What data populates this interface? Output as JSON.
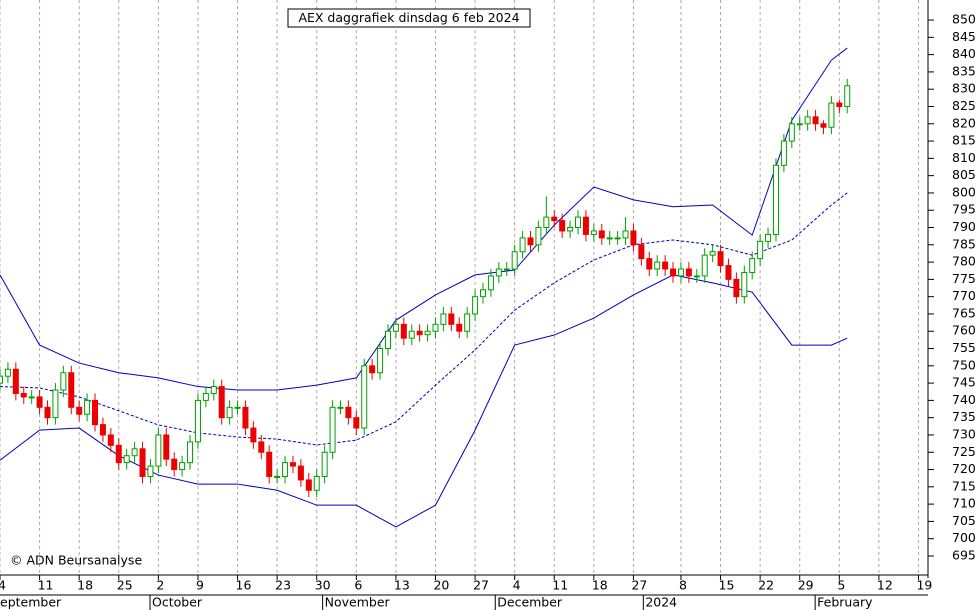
{
  "chart_data": {
    "type": "candlestick",
    "title": "AEX daggrafiek dinsdag 6 feb 2024",
    "copyright": "© ADN Beursanalyse",
    "up_color": "#00a000",
    "down_color": "#ee0000",
    "band_color": "#0000c0",
    "ylim": [
      689.5,
      855.8
    ],
    "yticks": [
      695,
      700,
      705,
      710,
      715,
      720,
      725,
      730,
      735,
      740,
      745,
      750,
      755,
      760,
      765,
      770,
      775,
      780,
      785,
      790,
      795,
      800,
      805,
      810,
      815,
      820,
      825,
      830,
      835,
      840,
      845,
      850
    ],
    "xlim": [
      0,
      117.2
    ],
    "xticks": [
      {
        "value": 0,
        "label": "4"
      },
      {
        "value": 5,
        "label": "11"
      },
      {
        "value": 10,
        "label": "18"
      },
      {
        "value": 15,
        "label": "25"
      },
      {
        "value": 20,
        "label": "2"
      },
      {
        "value": 25,
        "label": "9"
      },
      {
        "value": 30,
        "label": "16"
      },
      {
        "value": 35,
        "label": "23"
      },
      {
        "value": 40,
        "label": "30"
      },
      {
        "value": 45,
        "label": "6"
      },
      {
        "value": 50,
        "label": "13"
      },
      {
        "value": 55,
        "label": "20"
      },
      {
        "value": 60,
        "label": "27"
      },
      {
        "value": 65,
        "label": "4"
      },
      {
        "value": 70,
        "label": "11"
      },
      {
        "value": 75,
        "label": "18"
      },
      {
        "value": 80,
        "label": "27"
      },
      {
        "value": 86,
        "label": "8"
      },
      {
        "value": 91,
        "label": "15"
      },
      {
        "value": 96,
        "label": "22"
      },
      {
        "value": 101,
        "label": "29"
      },
      {
        "value": 106,
        "label": "5"
      },
      {
        "value": 111,
        "label": "12"
      },
      {
        "value": 116,
        "label": "19"
      }
    ],
    "month_labels": [
      {
        "value": -1,
        "label": "September"
      },
      {
        "value": 19.2,
        "label": "October"
      },
      {
        "value": 41,
        "label": "November"
      },
      {
        "value": 62.8,
        "label": "December"
      },
      {
        "value": 81.5,
        "label": "2024"
      },
      {
        "value": 103.2,
        "label": "February"
      }
    ],
    "x": [
      0,
      1,
      2,
      3,
      4,
      5,
      6,
      7,
      8,
      9,
      10,
      11,
      12,
      13,
      14,
      15,
      16,
      17,
      18,
      19,
      20,
      21,
      22,
      23,
      24,
      25,
      26,
      27,
      28,
      29,
      30,
      31,
      32,
      33,
      34,
      35,
      36,
      37,
      38,
      39,
      40,
      41,
      42,
      43,
      44,
      45,
      46,
      47,
      48,
      49,
      50,
      51,
      52,
      53,
      54,
      55,
      56,
      57,
      58,
      59,
      60,
      61,
      62,
      63,
      64,
      65,
      66,
      67,
      68,
      69,
      70,
      71,
      72,
      73,
      74,
      75,
      76,
      77,
      78,
      79,
      80,
      81,
      82,
      83,
      84,
      85,
      86,
      87,
      88,
      89,
      90,
      91,
      92,
      93,
      94,
      95,
      96,
      97,
      98,
      99,
      100,
      101,
      102,
      103,
      104,
      105,
      106,
      107
    ],
    "open": [
      745,
      747,
      749,
      742,
      741,
      741,
      738,
      735,
      743,
      748,
      738,
      736,
      740,
      733,
      730,
      727,
      722,
      724,
      726,
      718,
      721,
      730,
      723,
      720,
      722,
      728,
      740,
      742,
      744,
      735,
      738,
      738,
      732,
      728,
      725,
      718,
      718,
      722,
      721,
      717,
      714,
      718,
      725,
      738,
      738,
      735,
      732,
      750,
      748,
      755,
      760,
      762,
      758,
      760,
      759,
      760,
      762,
      765,
      762,
      760,
      765,
      770,
      772,
      776,
      778,
      778,
      783,
      787,
      785,
      790,
      793,
      792,
      789,
      790,
      793,
      788,
      789,
      787,
      787,
      787,
      789,
      785,
      781,
      778,
      780,
      778,
      776,
      778,
      776,
      776,
      782,
      783,
      779,
      775,
      770,
      777,
      781,
      786,
      788,
      808,
      815,
      820,
      820,
      822,
      820,
      819,
      826,
      825
    ],
    "high": [
      749,
      751,
      751,
      744,
      743,
      743,
      740,
      745,
      750,
      750,
      740,
      742,
      742,
      735,
      732,
      729,
      726,
      728,
      728,
      723,
      732,
      732,
      725,
      724,
      730,
      742,
      744,
      746,
      746,
      740,
      740,
      740,
      734,
      730,
      727,
      720,
      724,
      724,
      723,
      719,
      720,
      727,
      740,
      740,
      740,
      737,
      752,
      752,
      757,
      762,
      764,
      764,
      762,
      762,
      762,
      764,
      767,
      767,
      764,
      767,
      772,
      774,
      778,
      780,
      780,
      785,
      789,
      789,
      792,
      799,
      795,
      794,
      792,
      795,
      795,
      791,
      791,
      789,
      789,
      793,
      791,
      787,
      783,
      782,
      782,
      780,
      780,
      780,
      778,
      784,
      785,
      785,
      781,
      777,
      779,
      783,
      788,
      790,
      810,
      817,
      822,
      822,
      824,
      824,
      821,
      828,
      827,
      833
    ],
    "low": [
      743,
      745,
      740,
      739,
      739,
      736,
      733,
      733,
      741,
      736,
      734,
      734,
      731,
      728,
      725,
      720,
      720,
      722,
      716,
      716,
      719,
      721,
      718,
      718,
      720,
      726,
      738,
      740,
      733,
      733,
      736,
      730,
      726,
      723,
      716,
      716,
      716,
      719,
      715,
      712,
      712,
      716,
      723,
      736,
      733,
      730,
      730,
      746,
      746,
      753,
      758,
      756,
      756,
      757,
      757,
      758,
      760,
      760,
      758,
      758,
      763,
      768,
      770,
      774,
      776,
      776,
      781,
      783,
      783,
      788,
      790,
      787,
      787,
      788,
      786,
      786,
      785,
      785,
      785,
      785,
      783,
      779,
      776,
      776,
      776,
      774,
      774,
      774,
      774,
      774,
      780,
      777,
      773,
      768,
      768,
      775,
      779,
      784,
      786,
      806,
      813,
      818,
      818,
      818,
      817,
      817,
      823,
      823
    ],
    "close": [
      747,
      749,
      742,
      741,
      741,
      738,
      735,
      743,
      748,
      738,
      736,
      740,
      733,
      730,
      727,
      722,
      724,
      726,
      718,
      721,
      730,
      723,
      720,
      722,
      728,
      740,
      742,
      744,
      735,
      738,
      738,
      732,
      728,
      725,
      718,
      718,
      722,
      721,
      717,
      714,
      718,
      725,
      738,
      738,
      735,
      732,
      750,
      748,
      755,
      760,
      762,
      758,
      760,
      759,
      760,
      762,
      765,
      762,
      760,
      765,
      770,
      772,
      776,
      778,
      778,
      783,
      787,
      785,
      790,
      793,
      792,
      789,
      790,
      793,
      788,
      789,
      787,
      787,
      787,
      789,
      785,
      781,
      778,
      780,
      778,
      776,
      778,
      776,
      776,
      782,
      783,
      779,
      775,
      770,
      777,
      781,
      786,
      788,
      808,
      815,
      820,
      820,
      822,
      820,
      819,
      826,
      825,
      831
    ],
    "bands": {
      "x": [
        0,
        5,
        10,
        15,
        20,
        25,
        30,
        35,
        40,
        45,
        50,
        55,
        60,
        65,
        70,
        75,
        80,
        85,
        90,
        95,
        100,
        105,
        107
      ],
      "upper": [
        776.3,
        756,
        750.8,
        748,
        746.5,
        744,
        743,
        743,
        744.4,
        746.5,
        763.2,
        770.5,
        776.3,
        777.7,
        790.7,
        801.7,
        798,
        796,
        796.5,
        787.8,
        821,
        838.4,
        841.9
      ],
      "middle": [
        744,
        743.6,
        741,
        737,
        732.9,
        730.6,
        729.4,
        728.8,
        727.1,
        728.5,
        733.8,
        744.4,
        754.6,
        766.1,
        774,
        780.6,
        785,
        786.4,
        785,
        782,
        786.4,
        796.5,
        800
      ],
      "lower": [
        722.7,
        731.4,
        732,
        724,
        718.4,
        715.8,
        715.8,
        714,
        709.7,
        709.7,
        703.4,
        709.7,
        731.4,
        756,
        758.9,
        763.8,
        770.5,
        776.3,
        774,
        771.3,
        756,
        756,
        758
      ]
    }
  }
}
